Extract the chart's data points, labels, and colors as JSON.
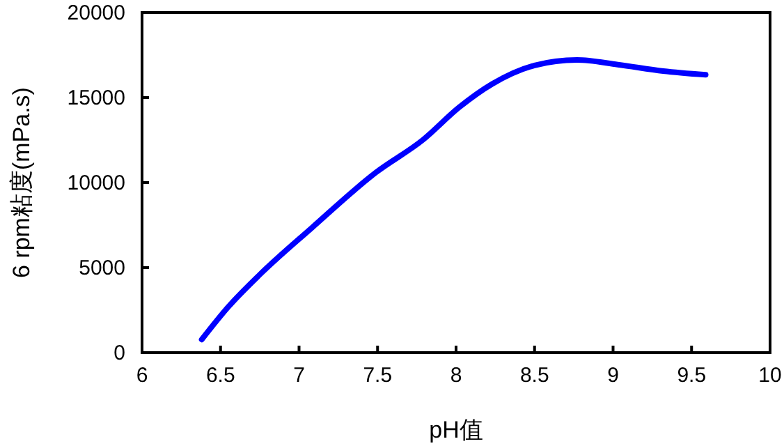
{
  "chart_data": {
    "type": "line",
    "xlabel": "pH值",
    "ylabel": "6 rpm粘度(mPa.s)",
    "xlim": [
      6,
      10
    ],
    "xticks": [
      6,
      6.5,
      7,
      7.5,
      8,
      8.5,
      9,
      9.5,
      10
    ],
    "ylim": [
      0,
      20000
    ],
    "yticks": [
      0,
      5000,
      10000,
      15000,
      20000
    ],
    "grid": false,
    "marker": "none",
    "line_style": "solid",
    "series": [
      {
        "color": "#0000ff",
        "x": [
          6.38,
          6.55,
          6.75,
          7.08,
          7.49,
          7.79,
          8.02,
          8.23,
          8.5,
          8.77,
          9.03,
          9.32,
          9.59
        ],
        "values": [
          770,
          2700,
          4590,
          7330,
          10600,
          12520,
          14430,
          15800,
          16890,
          17210,
          16940,
          16560,
          16340
        ]
      }
    ]
  }
}
